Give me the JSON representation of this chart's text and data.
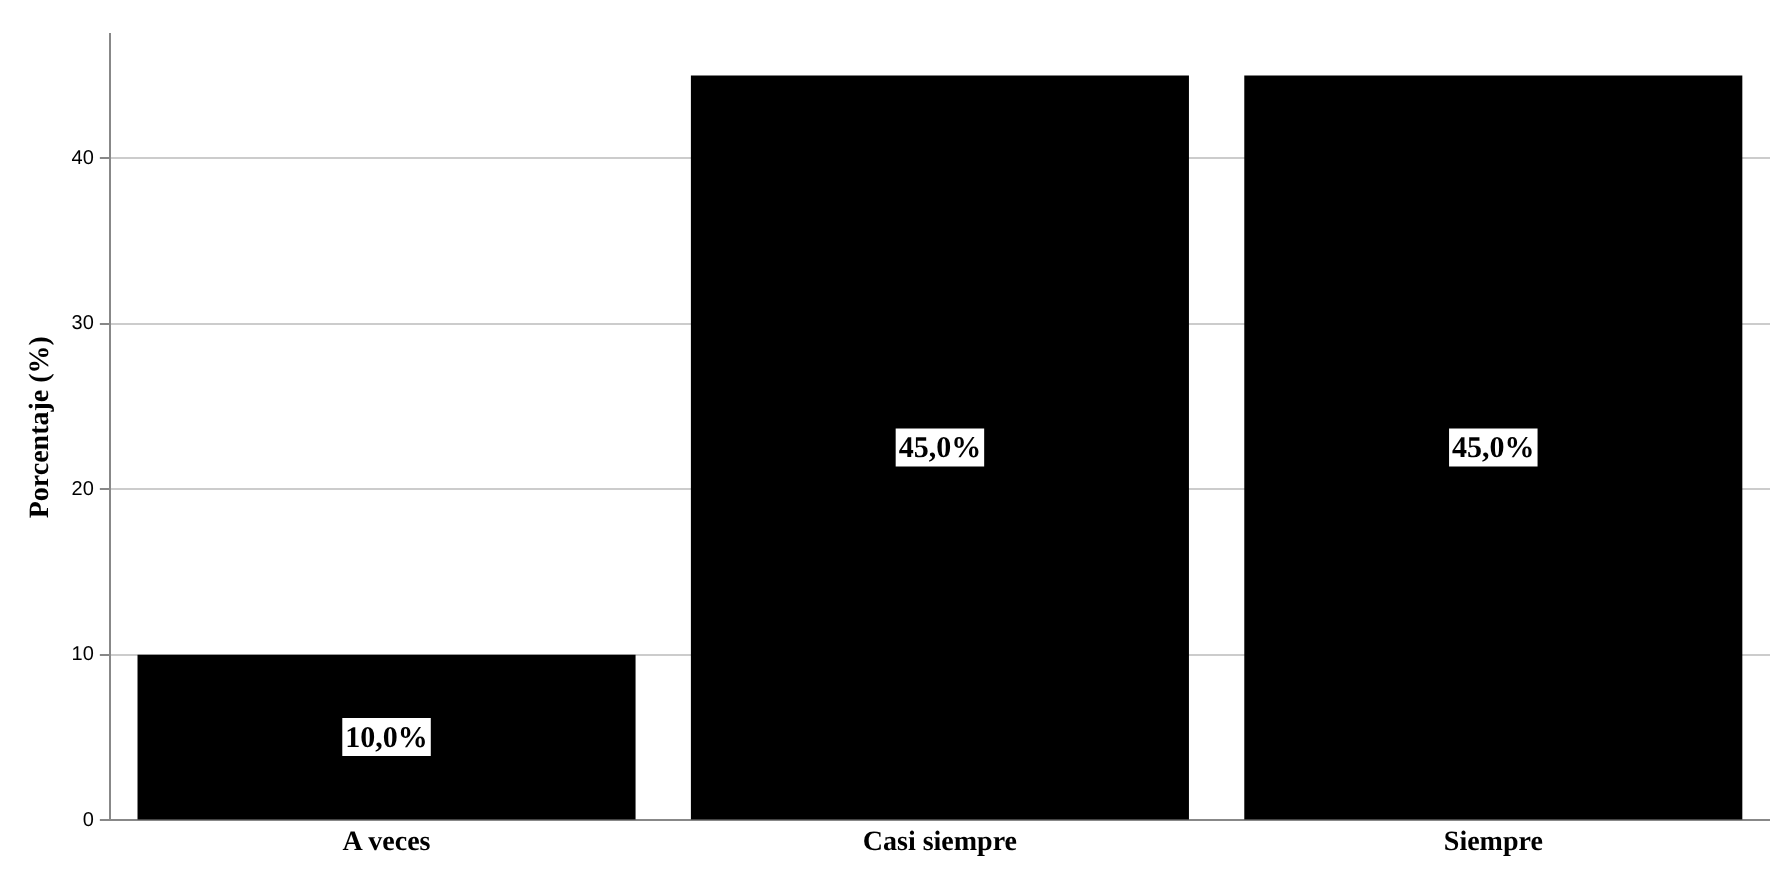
{
  "chart_data": {
    "type": "bar",
    "ylabel": "Porcentaje (%)",
    "categories": [
      "A veces",
      "Casi siempre",
      "Siempre"
    ],
    "values": [
      10,
      45,
      45
    ],
    "color": "#000000",
    "value_labels": [
      "10,0%",
      "45,0%",
      "45,0%"
    ],
    "ylim": [
      0,
      47.5
    ],
    "yticks": [
      0,
      10,
      20,
      30,
      40
    ],
    "grid": "y",
    "legend": false
  }
}
